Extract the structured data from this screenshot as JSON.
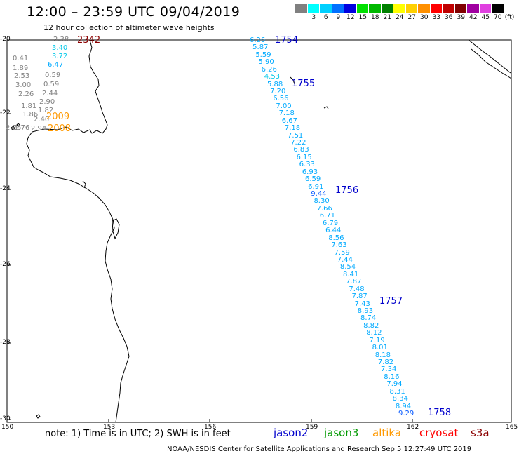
{
  "header": {
    "title": "12:00 – 23:59 UTC 09/04/2019",
    "subtitle": "12 hour collection of altimeter wave heights"
  },
  "colorbar": {
    "unit": "(ft)",
    "stops": [
      {
        "label": "",
        "color": "#808080"
      },
      {
        "label": "3",
        "color": "#00ffff"
      },
      {
        "label": "6",
        "color": "#00d0ff"
      },
      {
        "label": "9",
        "color": "#0070ff"
      },
      {
        "label": "12",
        "color": "#0000e0"
      },
      {
        "label": "15",
        "color": "#00e000"
      },
      {
        "label": "18",
        "color": "#00b800"
      },
      {
        "label": "21",
        "color": "#008000"
      },
      {
        "label": "24",
        "color": "#ffff00"
      },
      {
        "label": "27",
        "color": "#ffd000"
      },
      {
        "label": "30",
        "color": "#ff9000"
      },
      {
        "label": "33",
        "color": "#ff0000"
      },
      {
        "label": "36",
        "color": "#c00000"
      },
      {
        "label": "39",
        "color": "#800000"
      },
      {
        "label": "42",
        "color": "#a000a0"
      },
      {
        "label": "45",
        "color": "#e040e0"
      },
      {
        "label": "70",
        "color": "#000000"
      }
    ]
  },
  "axes": {
    "lat_labels": [
      "-20",
      "-22",
      "-24",
      "-26",
      "-28",
      "-30"
    ],
    "lon_labels": [
      "150",
      "153",
      "156",
      "159",
      "162",
      "165"
    ]
  },
  "observations": {
    "west": [
      {
        "v": "2.38",
        "c": "#808080"
      },
      {
        "v": "3.40",
        "c": "#00c8e8"
      },
      {
        "v": "3.72",
        "c": "#00c8e8"
      },
      {
        "v": "6.47",
        "c": "#00aaff"
      },
      {
        "v": "0.41",
        "c": "#808080"
      },
      {
        "v": "1.89",
        "c": "#808080"
      },
      {
        "v": "2.53",
        "c": "#808080"
      },
      {
        "v": "0.59",
        "c": "#808080"
      },
      {
        "v": "3.00",
        "c": "#808080"
      },
      {
        "v": "0.59",
        "c": "#808080"
      },
      {
        "v": "2.26",
        "c": "#808080"
      },
      {
        "v": "2.44",
        "c": "#808080"
      },
      {
        "v": "1.81",
        "c": "#808080"
      },
      {
        "v": "2.90",
        "c": "#808080"
      },
      {
        "v": "1.86",
        "c": "#808080"
      },
      {
        "v": "1.82",
        "c": "#808080"
      },
      {
        "v": "2.40",
        "c": "#808080"
      },
      {
        "v": "1.76",
        "c": "#808080"
      },
      {
        "v": "2.94",
        "c": "#808080"
      },
      {
        "v": "2.26",
        "c": "#808080"
      }
    ],
    "track": [
      {
        "v": "6.26",
        "c": "#00aaff"
      },
      {
        "v": "5.87",
        "c": "#00aaff"
      },
      {
        "v": "5.59",
        "c": "#00aaff"
      },
      {
        "v": "5.90",
        "c": "#00aaff"
      },
      {
        "v": "6.26",
        "c": "#00aaff"
      },
      {
        "v": "4.53",
        "c": "#00c8e8"
      },
      {
        "v": "5.88",
        "c": "#00aaff"
      },
      {
        "v": "7.20",
        "c": "#00aaff"
      },
      {
        "v": "6.56",
        "c": "#00aaff"
      },
      {
        "v": "7.00",
        "c": "#00aaff"
      },
      {
        "v": "7.18",
        "c": "#00aaff"
      },
      {
        "v": "6.67",
        "c": "#00aaff"
      },
      {
        "v": "7.18",
        "c": "#00aaff"
      },
      {
        "v": "7.51",
        "c": "#00aaff"
      },
      {
        "v": "7.22",
        "c": "#00aaff"
      },
      {
        "v": "6.83",
        "c": "#00aaff"
      },
      {
        "v": "6.15",
        "c": "#00aaff"
      },
      {
        "v": "6.33",
        "c": "#00aaff"
      },
      {
        "v": "6.93",
        "c": "#00aaff"
      },
      {
        "v": "6.59",
        "c": "#00aaff"
      },
      {
        "v": "6.91",
        "c": "#00aaff"
      },
      {
        "v": "9.44",
        "c": "#0055ff"
      },
      {
        "v": "8.30",
        "c": "#00aaff"
      },
      {
        "v": "7.66",
        "c": "#00aaff"
      },
      {
        "v": "6.71",
        "c": "#00aaff"
      },
      {
        "v": "6.79",
        "c": "#00aaff"
      },
      {
        "v": "6.44",
        "c": "#00aaff"
      },
      {
        "v": "8.56",
        "c": "#00aaff"
      },
      {
        "v": "7.63",
        "c": "#00aaff"
      },
      {
        "v": "7.59",
        "c": "#00aaff"
      },
      {
        "v": "7.44",
        "c": "#00aaff"
      },
      {
        "v": "8.54",
        "c": "#00aaff"
      },
      {
        "v": "8.41",
        "c": "#00aaff"
      },
      {
        "v": "7.87",
        "c": "#00aaff"
      },
      {
        "v": "7.48",
        "c": "#00aaff"
      },
      {
        "v": "7.87",
        "c": "#00aaff"
      },
      {
        "v": "7.43",
        "c": "#00aaff"
      },
      {
        "v": "8.93",
        "c": "#00aaff"
      },
      {
        "v": "8.74",
        "c": "#00aaff"
      },
      {
        "v": "8.82",
        "c": "#00aaff"
      },
      {
        "v": "8.12",
        "c": "#00aaff"
      },
      {
        "v": "7.19",
        "c": "#00aaff"
      },
      {
        "v": "8.01",
        "c": "#00aaff"
      },
      {
        "v": "8.18",
        "c": "#00aaff"
      },
      {
        "v": "7.82",
        "c": "#00aaff"
      },
      {
        "v": "7.34",
        "c": "#00aaff"
      },
      {
        "v": "8.16",
        "c": "#00aaff"
      },
      {
        "v": "7.94",
        "c": "#00aaff"
      },
      {
        "v": "8.31",
        "c": "#00aaff"
      },
      {
        "v": "8.34",
        "c": "#00aaff"
      },
      {
        "v": "8.94",
        "c": "#00aaff"
      },
      {
        "v": "9.29",
        "c": "#0055ff"
      }
    ]
  },
  "time_labels": [
    {
      "v": "2342",
      "c": "#8b0000"
    },
    {
      "v": "2009",
      "c": "#ff9900"
    },
    {
      "v": "2008",
      "c": "#ff9900"
    },
    {
      "v": "1754",
      "c": "#0000cc"
    },
    {
      "v": "1755",
      "c": "#0000cc"
    },
    {
      "v": "1756",
      "c": "#0000cc"
    },
    {
      "v": "1757",
      "c": "#0000cc"
    },
    {
      "v": "1758",
      "c": "#0000cc"
    }
  ],
  "footer": {
    "note": "note: 1) Time is in UTC; 2) SWH is in feet",
    "satellites": [
      {
        "name": "jason2",
        "color": "#0000cc"
      },
      {
        "name": "jason3",
        "color": "#009900"
      },
      {
        "name": "altika",
        "color": "#ff9900"
      },
      {
        "name": "cryosat",
        "color": "#ff0000"
      },
      {
        "name": "s3a",
        "color": "#8b0000"
      }
    ],
    "credit": "NOAA/NESDIS Center for Satellite Applications and Research    Sep  5 12:27:49 UTC 2019"
  }
}
